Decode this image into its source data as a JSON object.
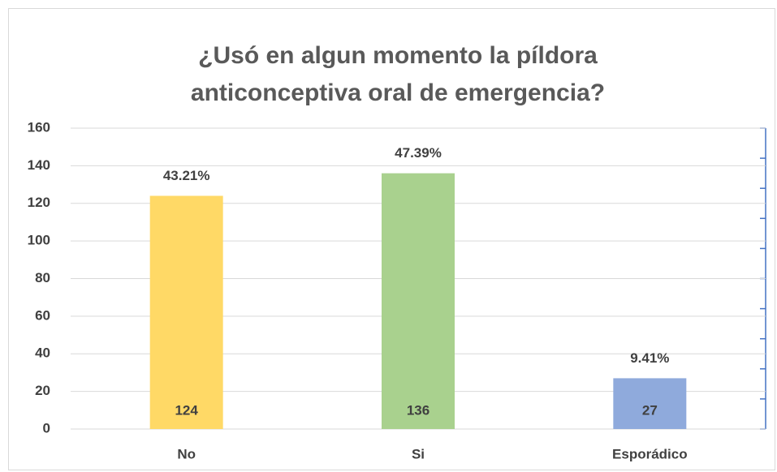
{
  "chart_data": {
    "type": "bar",
    "title": "¿Usó en algun momento la píldora anticonceptiva oral de emergencia?",
    "categories": [
      "No",
      "Si",
      "Esporádico"
    ],
    "values": [
      124,
      136,
      27
    ],
    "colors": [
      "#FFD966",
      "#A9D18E",
      "#8FAADC"
    ],
    "percentage_labels": [
      "43.21%",
      "47.39%",
      "9.41%"
    ],
    "ylim": [
      0,
      160
    ],
    "yticks": [
      0,
      20,
      40,
      60,
      80,
      100,
      120,
      140,
      160
    ],
    "grid": true
  }
}
